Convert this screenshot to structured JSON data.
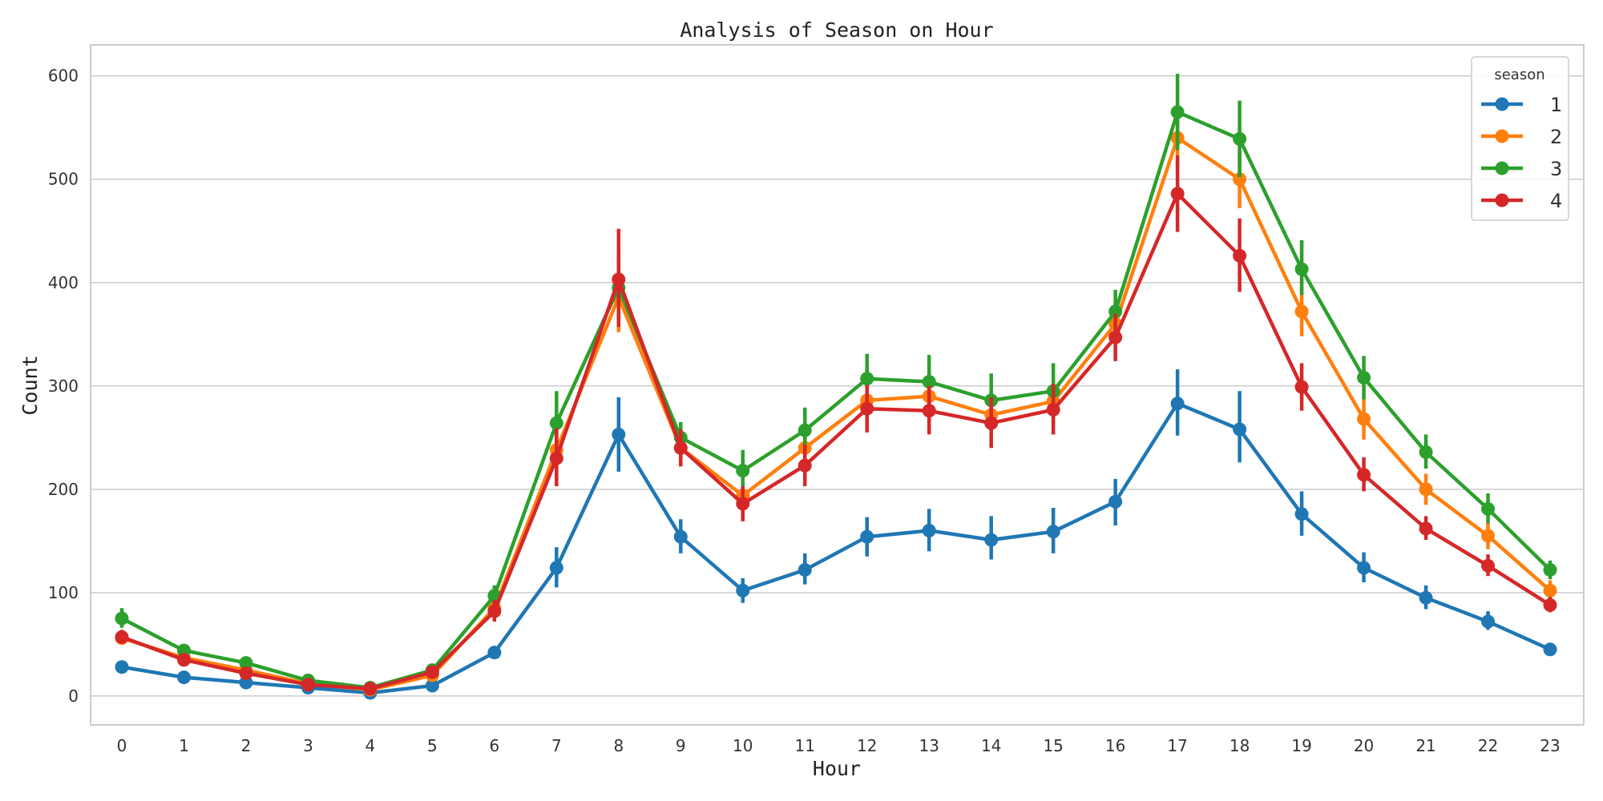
{
  "chart_data": {
    "type": "line",
    "title": "Analysis of Season on Hour",
    "xlabel": "Hour",
    "ylabel": "Count",
    "ylim": [
      -28,
      630
    ],
    "yticks": [
      0,
      100,
      200,
      300,
      400,
      500,
      600
    ],
    "grid": "horizontal",
    "legend": {
      "title": "season",
      "placement": "top-right"
    },
    "x": [
      0,
      1,
      2,
      3,
      4,
      5,
      6,
      7,
      8,
      9,
      10,
      11,
      12,
      13,
      14,
      15,
      16,
      17,
      18,
      19,
      20,
      21,
      22,
      23
    ],
    "series": [
      {
        "name": "1",
        "color": "#1f77b4",
        "values": [
          28,
          18,
          13,
          8,
          3,
          10,
          42,
          124,
          253,
          154,
          102,
          122,
          154,
          160,
          151,
          159,
          188,
          283,
          258,
          176,
          124,
          95,
          72,
          45
        ],
        "ci": [
          [
            25,
            32
          ],
          [
            16,
            21
          ],
          [
            11,
            15
          ],
          [
            6,
            10
          ],
          [
            2,
            5
          ],
          [
            8,
            12
          ],
          [
            38,
            47
          ],
          [
            105,
            144
          ],
          [
            217,
            289
          ],
          [
            138,
            171
          ],
          [
            90,
            114
          ],
          [
            108,
            138
          ],
          [
            135,
            173
          ],
          [
            140,
            181
          ],
          [
            132,
            174
          ],
          [
            138,
            182
          ],
          [
            165,
            210
          ],
          [
            252,
            316
          ],
          [
            226,
            295
          ],
          [
            155,
            198
          ],
          [
            110,
            139
          ],
          [
            84,
            107
          ],
          [
            64,
            82
          ],
          [
            40,
            50
          ]
        ]
      },
      {
        "name": "2",
        "color": "#ff7f0e",
        "values": [
          56,
          37,
          25,
          12,
          6,
          20,
          85,
          238,
          386,
          240,
          194,
          240,
          286,
          290,
          272,
          285,
          360,
          540,
          500,
          372,
          268,
          200,
          155,
          102
        ],
        "ci": [
          [
            50,
            63
          ],
          [
            33,
            42
          ],
          [
            22,
            29
          ],
          [
            10,
            14
          ],
          [
            5,
            8
          ],
          [
            17,
            24
          ],
          [
            77,
            94
          ],
          [
            210,
            266
          ],
          [
            352,
            420
          ],
          [
            225,
            256
          ],
          [
            178,
            210
          ],
          [
            222,
            258
          ],
          [
            265,
            308
          ],
          [
            270,
            311
          ],
          [
            252,
            293
          ],
          [
            262,
            306
          ],
          [
            340,
            382
          ],
          [
            512,
            568
          ],
          [
            472,
            528
          ],
          [
            348,
            396
          ],
          [
            248,
            288
          ],
          [
            185,
            215
          ],
          [
            142,
            168
          ],
          [
            92,
            112
          ]
        ]
      },
      {
        "name": "3",
        "color": "#2ca02c",
        "values": [
          75,
          44,
          32,
          15,
          8,
          25,
          97,
          264,
          395,
          250,
          218,
          257,
          307,
          304,
          286,
          295,
          372,
          565,
          539,
          413,
          308,
          236,
          181,
          122
        ],
        "ci": [
          [
            66,
            85
          ],
          [
            39,
            50
          ],
          [
            28,
            37
          ],
          [
            13,
            18
          ],
          [
            6,
            10
          ],
          [
            21,
            29
          ],
          [
            88,
            107
          ],
          [
            234,
            295
          ],
          [
            365,
            426
          ],
          [
            235,
            265
          ],
          [
            198,
            238
          ],
          [
            236,
            279
          ],
          [
            283,
            331
          ],
          [
            279,
            330
          ],
          [
            261,
            312
          ],
          [
            268,
            322
          ],
          [
            350,
            393
          ],
          [
            528,
            602
          ],
          [
            502,
            576
          ],
          [
            388,
            441
          ],
          [
            287,
            329
          ],
          [
            220,
            253
          ],
          [
            167,
            196
          ],
          [
            113,
            131
          ]
        ]
      },
      {
        "name": "4",
        "color": "#d62728",
        "values": [
          57,
          35,
          22,
          11,
          7,
          23,
          82,
          230,
          403,
          240,
          186,
          223,
          278,
          276,
          264,
          277,
          347,
          486,
          426,
          299,
          214,
          162,
          126,
          88
        ],
        "ci": [
          [
            51,
            64
          ],
          [
            31,
            40
          ],
          [
            19,
            26
          ],
          [
            9,
            14
          ],
          [
            5,
            9
          ],
          [
            19,
            27
          ],
          [
            72,
            93
          ],
          [
            203,
            259
          ],
          [
            357,
            452
          ],
          [
            222,
            258
          ],
          [
            169,
            203
          ],
          [
            203,
            243
          ],
          [
            255,
            301
          ],
          [
            253,
            300
          ],
          [
            240,
            289
          ],
          [
            253,
            302
          ],
          [
            324,
            370
          ],
          [
            449,
            523
          ],
          [
            391,
            462
          ],
          [
            276,
            322
          ],
          [
            198,
            231
          ],
          [
            151,
            174
          ],
          [
            116,
            137
          ],
          [
            81,
            96
          ]
        ]
      }
    ]
  }
}
